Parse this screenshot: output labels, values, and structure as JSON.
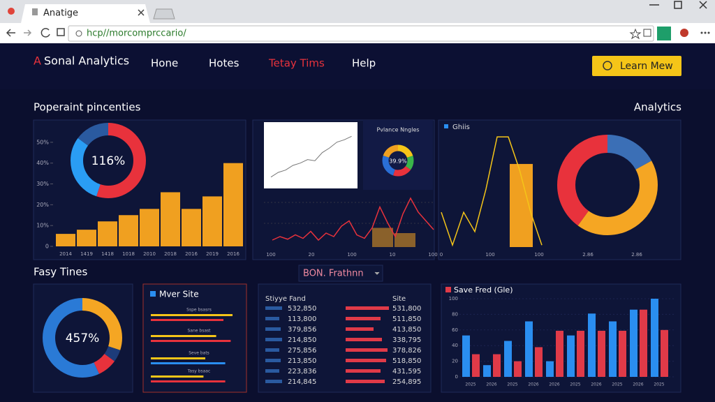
{
  "browser": {
    "tab_title": "Anatige",
    "url": "hcp//morcomprccario/"
  },
  "nav": {
    "brand_mark": "A",
    "brand": "Sonal Analytics",
    "links": [
      "Hone",
      "Hotes",
      "Tetay Tims",
      "Help"
    ],
    "active": 2,
    "button": "Learn Mew"
  },
  "section1": {
    "title": "Poperaint pincenties",
    "right_title": "Analytics"
  },
  "panel1": {
    "donut": {
      "label": "116%",
      "values": [
        55,
        30,
        15
      ],
      "colors": [
        "#e8323c",
        "#2a9df4",
        "#2a5aa0"
      ]
    },
    "bars": {
      "values": [
        6,
        8,
        12,
        15,
        18,
        26,
        18,
        24,
        40
      ],
      "color": "#f0a020",
      "ylim": [
        0,
        58
      ],
      "yticks": [
        {
          "value": 50,
          "label": "50%"
        },
        {
          "value": 40,
          "label": "40%"
        },
        {
          "value": 30,
          "label": "30%"
        },
        {
          "value": 20,
          "label": "20%"
        },
        {
          "value": 10,
          "label": "10%"
        },
        0
      ],
      "categories": [
        "2014",
        "1419",
        "1418",
        "1018",
        "2010",
        "2018",
        "2016",
        "2019",
        "2016"
      ]
    }
  },
  "panel2": {
    "inset_line": {
      "values": [
        10,
        18,
        22,
        30,
        34,
        40,
        38,
        52,
        60,
        70,
        74,
        80
      ],
      "ylim": [
        0,
        90
      ]
    },
    "mini_donut": {
      "title": "Pvlance Nngles",
      "label": "39.9%",
      "values": [
        20,
        15,
        20,
        25,
        20
      ],
      "colors": [
        "#f5c518",
        "#3ab54a",
        "#e8323c",
        "#2a6fd6",
        "#f0a020"
      ]
    },
    "line": {
      "values": [
        8,
        12,
        9,
        14,
        10,
        18,
        8,
        16,
        12,
        24,
        30,
        14,
        10,
        22,
        46,
        28,
        12,
        38,
        56,
        40,
        30,
        20
      ],
      "color": "#e8323c",
      "ylim": [
        0,
        80
      ]
    },
    "bars": {
      "values": [
        22,
        16
      ],
      "color": "#f0a020",
      "ylim": [
        0,
        80
      ]
    },
    "xticks": [
      "100",
      "20",
      "100",
      "10",
      "100"
    ]
  },
  "panel3": {
    "legend": "Ghiis",
    "line": {
      "values": [
        36,
        2,
        36,
        16,
        60,
        114,
        114,
        80,
        36,
        2
      ],
      "color": "#f5c518",
      "ylim": [
        0,
        130
      ]
    },
    "bar": {
      "value": 86,
      "color": "#f0a020"
    },
    "donut": {
      "values": [
        17,
        43,
        40
      ],
      "colors": [
        "#3b6fb6",
        "#f5a623",
        "#e8323c"
      ]
    },
    "xticks": [
      "0",
      "100",
      "100",
      "2.86",
      "2.86"
    ]
  },
  "section2": {
    "title": "Fasy Tines",
    "dropdown": "BON. Frathnn"
  },
  "donut2": {
    "label": "457%",
    "values": [
      30,
      5,
      8,
      57
    ],
    "colors": [
      "#f5a623",
      "#1d3c7a",
      "#e8323c",
      "#2a7ad6"
    ]
  },
  "mver": {
    "title": "Mver Site",
    "groups": [
      {
        "label": "Sspe bsasrs",
        "values": [
          90,
          80
        ]
      },
      {
        "label": "Sane bsast",
        "values": [
          72,
          88
        ]
      },
      {
        "label": "Seve bats",
        "values": [
          60,
          82
        ]
      },
      {
        "label": "Tasy bsaac",
        "values": [
          58,
          82
        ]
      }
    ]
  },
  "table": {
    "headers": [
      "Stiyye Fand",
      "Site"
    ],
    "rows": [
      [
        "532,850",
        "531,800"
      ],
      [
        "113,800",
        "511,850"
      ],
      [
        "379,856",
        "413,850"
      ],
      [
        "214,850",
        "338,795"
      ],
      [
        "275,856",
        "378,826"
      ],
      [
        "213,850",
        "518,850"
      ],
      [
        "223,836",
        "431,595"
      ],
      [
        "214,845",
        "254,895"
      ]
    ],
    "left_bars": [
      24,
      20,
      22,
      24,
      20,
      22,
      20,
      24
    ],
    "right_bars": [
      62,
      50,
      40,
      52,
      60,
      58,
      50,
      56
    ]
  },
  "bar_chart": {
    "title": "Save Fred (Gle)",
    "ylim": [
      0,
      100
    ],
    "yticks": [
      100,
      80,
      60,
      40,
      20,
      0
    ],
    "series": [
      {
        "name": "Save",
        "color": "#2a8ef0",
        "values": [
          53,
          15,
          46,
          71,
          20,
          53,
          81,
          71,
          86,
          100
        ]
      },
      {
        "name": "Fred",
        "color": "#e03a48",
        "values": [
          29,
          29,
          20,
          38,
          59,
          59,
          59,
          59,
          86,
          60
        ]
      }
    ],
    "categories": [
      "2025",
      "2026",
      "2025",
      "2026",
      "2026",
      "2025",
      "2026",
      "2025",
      "2026",
      "2025"
    ]
  }
}
